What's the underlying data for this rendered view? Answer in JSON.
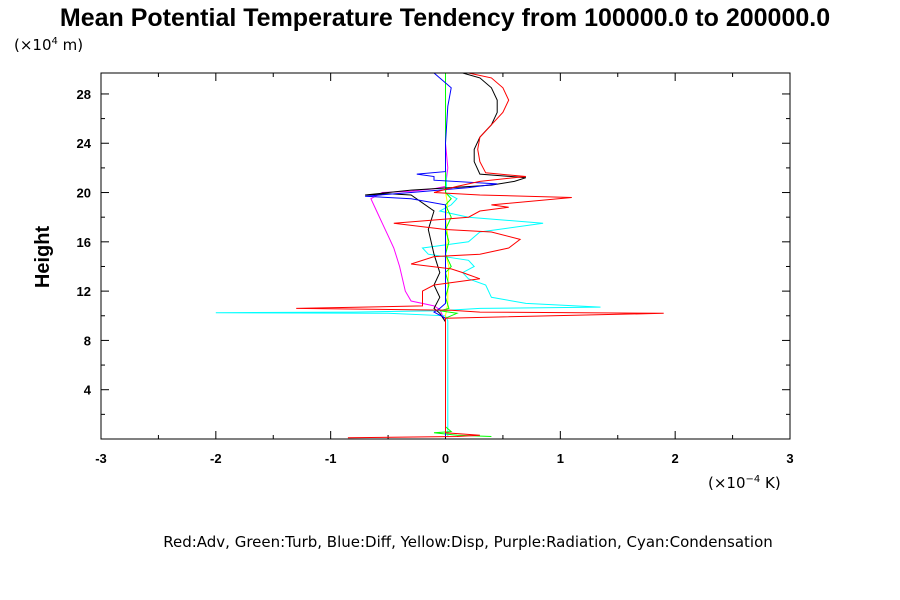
{
  "chart_data": {
    "type": "line",
    "title": "Mean Potential Temperature Tendency from 100000.0 to 200000.0",
    "ylabel": "Height",
    "y_scale_label": {
      "prefix": "(×10",
      "exp": "4",
      "suffix": " m)"
    },
    "x_scale_label": {
      "prefix": "(×10",
      "exp": "−4",
      "suffix": " K)"
    },
    "xlim": [
      -3,
      3
    ],
    "ylim": [
      0,
      29.7
    ],
    "x_ticks": [
      {
        "value": -3,
        "label": "-3"
      },
      {
        "value": -2,
        "label": "-2"
      },
      {
        "value": -1,
        "label": "-1"
      },
      {
        "value": 0,
        "label": "0"
      },
      {
        "value": 1,
        "label": "1"
      },
      {
        "value": 2,
        "label": "2"
      },
      {
        "value": 3,
        "label": "3"
      }
    ],
    "y_ticks": [
      {
        "value": 4,
        "label": "4"
      },
      {
        "value": 8,
        "label": "8"
      },
      {
        "value": 12,
        "label": "12"
      },
      {
        "value": 16,
        "label": "16"
      },
      {
        "value": 20,
        "label": "20"
      },
      {
        "value": 24,
        "label": "24"
      },
      {
        "value": 28,
        "label": "28"
      }
    ],
    "legend_text": "Red:Adv, Green:Turb, Blue:Diff, Yellow:Disp, Purple:Radiation, Cyan:Condensation",
    "series": [
      {
        "color": "#ff00ff",
        "points": [
          [
            0,
            0.2
          ],
          [
            0,
            9.5
          ],
          [
            -0.05,
            10.5
          ],
          [
            -0.1,
            10.8
          ],
          [
            -0.3,
            11.2
          ],
          [
            -0.35,
            12
          ],
          [
            -0.4,
            14
          ],
          [
            -0.45,
            15.5
          ],
          [
            -0.5,
            16.5
          ],
          [
            -0.55,
            17.5
          ],
          [
            -0.6,
            18.5
          ],
          [
            -0.65,
            19.5
          ],
          [
            -0.55,
            20
          ],
          [
            -0.3,
            20.1
          ],
          [
            -0.1,
            20.3
          ],
          [
            0,
            20.5
          ],
          [
            0.02,
            22
          ],
          [
            0,
            24
          ],
          [
            0,
            29.7
          ]
        ]
      },
      {
        "color": "#00ffff",
        "points": [
          [
            0.02,
            0.2
          ],
          [
            0.02,
            9.6
          ],
          [
            0,
            10
          ],
          [
            -0.5,
            10.2
          ],
          [
            -2.0,
            10.25
          ],
          [
            -0.8,
            10.3
          ],
          [
            -0.05,
            10.4
          ],
          [
            0.3,
            10.6
          ],
          [
            1.35,
            10.7
          ],
          [
            0.7,
            11
          ],
          [
            0.4,
            11.5
          ],
          [
            0.35,
            12.5
          ],
          [
            0.2,
            13
          ],
          [
            0.15,
            13.5
          ],
          [
            0.25,
            14
          ],
          [
            0.2,
            14.5
          ],
          [
            -0.15,
            15
          ],
          [
            -0.2,
            15.5
          ],
          [
            0.2,
            16
          ],
          [
            0.3,
            16.8
          ],
          [
            0.85,
            17.5
          ],
          [
            0.2,
            18
          ],
          [
            -0.05,
            18.5
          ],
          [
            0.05,
            19
          ],
          [
            0.1,
            19.5
          ],
          [
            0,
            20
          ],
          [
            0.01,
            20.5
          ],
          [
            0,
            22
          ],
          [
            0,
            24
          ],
          [
            0,
            26
          ],
          [
            0,
            28
          ],
          [
            0,
            29.7
          ]
        ]
      },
      {
        "color": "#ffff00",
        "points": [
          [
            0,
            0.2
          ],
          [
            0,
            10
          ],
          [
            0.02,
            11
          ],
          [
            0.02,
            12.5
          ],
          [
            0.03,
            14
          ],
          [
            0,
            15
          ],
          [
            0.02,
            16.5
          ],
          [
            0,
            18
          ],
          [
            0.02,
            19
          ],
          [
            0,
            20
          ],
          [
            0,
            29.7
          ]
        ]
      },
      {
        "color": "#00ff00",
        "points": [
          [
            0.4,
            0.2
          ],
          [
            0.1,
            0.3
          ],
          [
            -0.1,
            0.5
          ],
          [
            0.05,
            0.6
          ],
          [
            0,
            1
          ],
          [
            0,
            9.8
          ],
          [
            0.1,
            10.2
          ],
          [
            -0.05,
            10.4
          ],
          [
            0.03,
            10.6
          ],
          [
            0,
            11.5
          ],
          [
            0.03,
            12.5
          ],
          [
            0,
            13.5
          ],
          [
            0.05,
            14
          ],
          [
            0,
            15
          ],
          [
            0.03,
            16
          ],
          [
            0,
            17
          ],
          [
            0.05,
            18
          ],
          [
            0,
            19
          ],
          [
            0.05,
            19.5
          ],
          [
            0,
            20
          ],
          [
            0,
            29.7
          ]
        ]
      },
      {
        "color": "#000000",
        "points": [
          [
            0,
            0.2
          ],
          [
            0,
            9.5
          ],
          [
            -0.05,
            10.2
          ],
          [
            -0.1,
            10.6
          ],
          [
            -0.05,
            11.5
          ],
          [
            -0.1,
            12.5
          ],
          [
            -0.05,
            13.5
          ],
          [
            -0.1,
            15
          ],
          [
            -0.15,
            17
          ],
          [
            -0.1,
            18.5
          ],
          [
            -0.3,
            19.8
          ],
          [
            -0.5,
            19.9
          ],
          [
            -0.7,
            19.8
          ],
          [
            -0.3,
            20.2
          ],
          [
            0.4,
            20.6
          ],
          [
            0.6,
            20.9
          ],
          [
            0.7,
            21.2
          ],
          [
            0.3,
            21.5
          ],
          [
            0.25,
            22.5
          ],
          [
            0.25,
            23.5
          ],
          [
            0.3,
            24.5
          ],
          [
            0.4,
            25.5
          ],
          [
            0.45,
            26.5
          ],
          [
            0.45,
            27.5
          ],
          [
            0.4,
            28.5
          ],
          [
            0.3,
            29.3
          ],
          [
            0.15,
            29.7
          ]
        ]
      },
      {
        "color": "#0000ff",
        "points": [
          [
            0,
            0.2
          ],
          [
            0,
            9.8
          ],
          [
            -0.1,
            10.3
          ],
          [
            -0.05,
            10.6
          ],
          [
            0,
            11
          ],
          [
            0,
            19
          ],
          [
            -0.3,
            19.5
          ],
          [
            -0.7,
            19.7
          ],
          [
            -0.3,
            20
          ],
          [
            0.2,
            20.4
          ],
          [
            0.45,
            20.7
          ],
          [
            -0.1,
            21
          ],
          [
            -0.1,
            21.3
          ],
          [
            -0.25,
            21.5
          ],
          [
            0,
            21.7
          ],
          [
            0,
            24
          ],
          [
            0.02,
            27
          ],
          [
            0.05,
            28.5
          ],
          [
            -0.1,
            29.7
          ]
        ]
      },
      {
        "color": "#ff0000",
        "points": [
          [
            -0.85,
            0.1
          ],
          [
            0.1,
            0.2
          ],
          [
            0.3,
            0.3
          ],
          [
            0,
            0.5
          ],
          [
            0,
            9.8
          ],
          [
            1.9,
            10.2
          ],
          [
            0.3,
            10.3
          ],
          [
            0.05,
            10.45
          ],
          [
            -1.3,
            10.6
          ],
          [
            -0.2,
            10.8
          ],
          [
            -0.2,
            12
          ],
          [
            -0.1,
            12.5
          ],
          [
            0.3,
            13
          ],
          [
            0.15,
            13.5
          ],
          [
            0.05,
            13.8
          ],
          [
            -0.3,
            14.2
          ],
          [
            -0.1,
            14.8
          ],
          [
            0.3,
            15
          ],
          [
            0.55,
            15.5
          ],
          [
            0.65,
            16.2
          ],
          [
            0.4,
            16.8
          ],
          [
            0,
            17
          ],
          [
            -0.45,
            17.5
          ],
          [
            0.2,
            18
          ],
          [
            0.3,
            18.5
          ],
          [
            0.55,
            18.8
          ],
          [
            0.4,
            19
          ],
          [
            1.1,
            19.6
          ],
          [
            0.3,
            19.8
          ],
          [
            -0.1,
            20
          ],
          [
            0.1,
            20.5
          ],
          [
            0.3,
            20.9
          ],
          [
            0.7,
            21.3
          ],
          [
            0.35,
            21.6
          ],
          [
            0.3,
            22.5
          ],
          [
            0.28,
            23.5
          ],
          [
            0.3,
            24.5
          ],
          [
            0.4,
            25.5
          ],
          [
            0.5,
            26.5
          ],
          [
            0.55,
            27.5
          ],
          [
            0.5,
            28.5
          ],
          [
            0.4,
            29.3
          ],
          [
            0.2,
            29.7
          ]
        ]
      }
    ]
  }
}
